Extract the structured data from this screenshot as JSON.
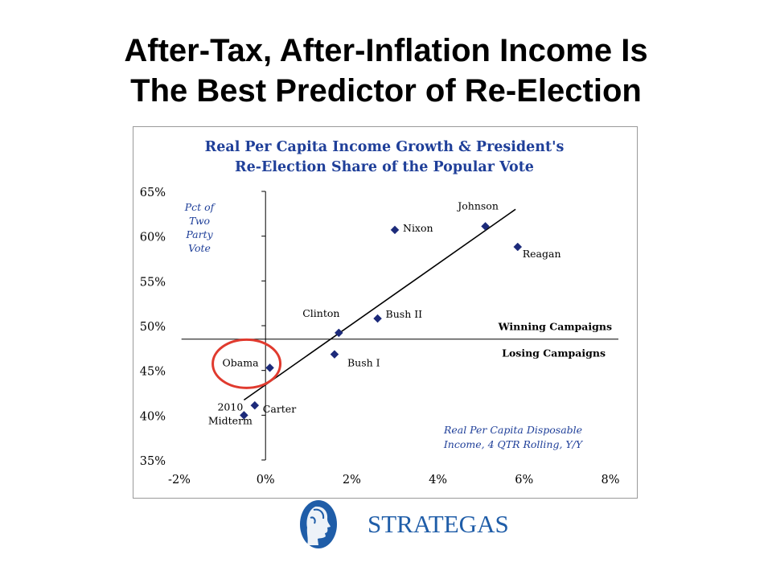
{
  "slide": {
    "title_line1": "After-Tax, After-Inflation Income Is",
    "title_line2": "The Best Predictor of Re-Election"
  },
  "chart_data": {
    "type": "scatter",
    "title": "Real Per Capita Income Growth & President's",
    "subtitle": "Re-Election Share of the Popular Vote",
    "ylabel_lines": [
      "Pct of",
      "Two",
      "Party",
      "Vote"
    ],
    "xlabel_lines": [
      "Real Per Capita Disposable",
      "Income, 4 QTR Rolling, Y/Y"
    ],
    "xlim": [
      -2,
      8
    ],
    "ylim": [
      35,
      65
    ],
    "x_ticks": [
      -2,
      0,
      2,
      4,
      6,
      8
    ],
    "x_tick_labels": [
      "-2%",
      "0%",
      "2%",
      "4%",
      "6%",
      "8%"
    ],
    "y_ticks": [
      35,
      40,
      45,
      50,
      55,
      60,
      65
    ],
    "y_tick_labels": [
      "35%",
      "40%",
      "45%",
      "50%",
      "55%",
      "60%",
      "65%"
    ],
    "grid": false,
    "points": [
      {
        "label": "2010\nMidterm",
        "x": -0.5,
        "y": 40.0
      },
      {
        "label": "Carter",
        "x": -0.25,
        "y": 41.1
      },
      {
        "label": "Obama",
        "x": 0.1,
        "y": 45.3
      },
      {
        "label": "Bush I",
        "x": 1.6,
        "y": 46.8
      },
      {
        "label": "Clinton",
        "x": 1.7,
        "y": 49.2
      },
      {
        "label": "Bush II",
        "x": 2.6,
        "y": 50.8
      },
      {
        "label": "Nixon",
        "x": 3.0,
        "y": 60.7
      },
      {
        "label": "Johnson",
        "x": 5.1,
        "y": 61.1
      },
      {
        "label": "Reagan",
        "x": 5.85,
        "y": 58.8
      }
    ],
    "trendline": {
      "x": [
        -0.5,
        5.8
      ],
      "y": [
        41.7,
        63.0
      ]
    },
    "threshold": {
      "y": 48.5,
      "above_label": "Winning Campaigns",
      "below_label": "Losing Campaigns"
    },
    "highlight": {
      "label": "Obama",
      "shape": "circle"
    },
    "colors": {
      "title": "#1f3f99",
      "marker": "#1c2a7a",
      "highlight": "#e03a2e",
      "axis": "#000000"
    }
  },
  "logo": {
    "text": "STRATEGAS",
    "icon": "head-silhouette-icon",
    "color": "#1f5da8"
  }
}
